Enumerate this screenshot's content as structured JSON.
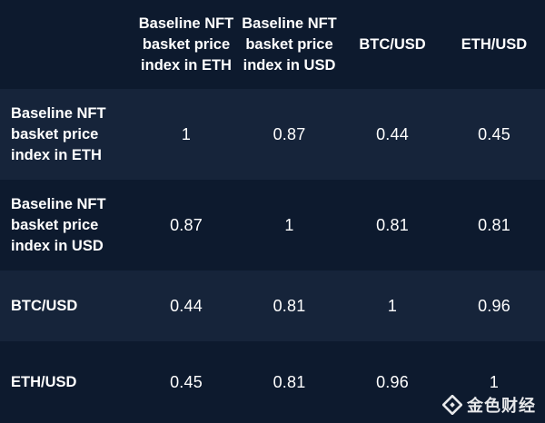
{
  "colors": {
    "background": "#0b1628",
    "row_dark": "#0d1a2e",
    "row_light": "#16243a",
    "text": "#ffffff",
    "watermark_accent": "#f0b90b"
  },
  "table": {
    "headers": [
      "",
      "Baseline NFT basket price index in ETH",
      "Baseline NFT basket price index in USD",
      "BTC/USD",
      "ETH/USD"
    ],
    "rows": [
      {
        "label": "Baseline NFT basket price index in ETH",
        "values": [
          "1",
          "0.87",
          "0.44",
          "0.45"
        ]
      },
      {
        "label": "Baseline NFT basket price index in USD",
        "values": [
          "0.87",
          "1",
          "0.81",
          "0.81"
        ]
      },
      {
        "label": "BTC/USD",
        "values": [
          "0.44",
          "0.81",
          "1",
          "0.96"
        ]
      },
      {
        "label": "ETH/USD",
        "values": [
          "0.45",
          "0.81",
          "0.96",
          "1"
        ]
      }
    ]
  },
  "watermark": {
    "icon": "jinse-logo-icon",
    "text": "金色财经"
  }
}
